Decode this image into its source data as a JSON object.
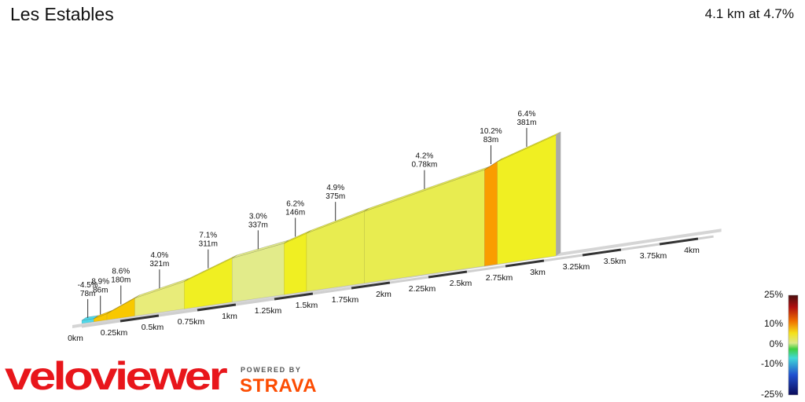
{
  "header": {
    "title": "Les Estables",
    "summary": "4.1 km at 4.7%"
  },
  "brand": {
    "logo_text": "veloviewer",
    "powered_by": "POWERED BY",
    "partner": "STRAVA"
  },
  "colors": {
    "descent": "#4fd7e8",
    "low_grade": "#e2eb8a",
    "mid_grade": "#f0ef22",
    "steep": "#f8c800",
    "very_steep": "#fa9c00",
    "green": "#5fe04a"
  },
  "chart_data": {
    "type": "area",
    "title": "Les Estables",
    "summary": "4.1 km at 4.7%",
    "x_unit": "km",
    "xlim": [
      0,
      4.1
    ],
    "x_ticks": [
      {
        "km": 0,
        "label": "0km"
      },
      {
        "km": 0.25,
        "label": "0.25km"
      },
      {
        "km": 0.5,
        "label": "0.5km"
      },
      {
        "km": 0.75,
        "label": "0.75km"
      },
      {
        "km": 1,
        "label": "1km"
      },
      {
        "km": 1.25,
        "label": "1.25km"
      },
      {
        "km": 1.5,
        "label": "1.5km"
      },
      {
        "km": 1.75,
        "label": "1.75km"
      },
      {
        "km": 2,
        "label": "2km"
      },
      {
        "km": 2.25,
        "label": "2.25km"
      },
      {
        "km": 2.5,
        "label": "2.5km"
      },
      {
        "km": 2.75,
        "label": "2.75km"
      },
      {
        "km": 3,
        "label": "3km"
      },
      {
        "km": 3.25,
        "label": "3.25km"
      },
      {
        "km": 3.5,
        "label": "3.5km"
      },
      {
        "km": 3.75,
        "label": "3.75km"
      },
      {
        "km": 4,
        "label": "4km"
      }
    ],
    "segments": [
      {
        "gradient": -4.5,
        "length_m": 78,
        "label_grade": "-4.5%",
        "label_len": "78m",
        "color": "#4fd7e8"
      },
      {
        "gradient": 8.9,
        "length_m": 86,
        "label_grade": "8.9%",
        "label_len": "86m",
        "color": "#f8c800"
      },
      {
        "gradient": 8.6,
        "length_m": 180,
        "label_grade": "8.6%",
        "label_len": "180m",
        "color": "#f8c800"
      },
      {
        "gradient": 4.0,
        "length_m": 321,
        "label_grade": "4.0%",
        "label_len": "321m",
        "color": "#e8ec7a"
      },
      {
        "gradient": 7.1,
        "length_m": 311,
        "label_grade": "7.1%",
        "label_len": "311m",
        "color": "#f0ef22"
      },
      {
        "gradient": 3.0,
        "length_m": 337,
        "label_grade": "3.0%",
        "label_len": "337m",
        "color": "#e2eb8a"
      },
      {
        "gradient": 6.2,
        "length_m": 146,
        "label_grade": "6.2%",
        "label_len": "146m",
        "color": "#f0ef22"
      },
      {
        "gradient": 4.9,
        "length_m": 375,
        "label_grade": "4.9%",
        "label_len": "375m",
        "color": "#e8ec50"
      },
      {
        "gradient": 4.2,
        "length_m": 780,
        "label_grade": "4.2%",
        "label_len": "0.78km",
        "color": "#e8ec50"
      },
      {
        "gradient": 10.2,
        "length_m": 83,
        "label_grade": "10.2%",
        "label_len": "83m",
        "color": "#fa9c00"
      },
      {
        "gradient": 6.4,
        "length_m": 381,
        "label_grade": "6.4%",
        "label_len": "381m",
        "color": "#f0ef22"
      }
    ],
    "gradient_scale": {
      "labels": [
        "25%",
        "10%",
        "0%",
        "-10%",
        "-25%"
      ],
      "values": [
        25,
        10,
        0,
        -10,
        -25
      ]
    }
  }
}
